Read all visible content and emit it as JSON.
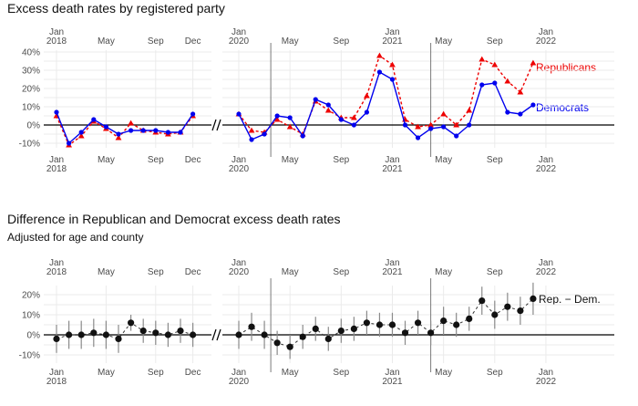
{
  "chart_data": [
    {
      "type": "line",
      "title": "Excess death rates by registered party",
      "yticks": [
        -10,
        0,
        10,
        20,
        30,
        40
      ],
      "ytick_labels": [
        "-10%",
        "0%",
        "10%",
        "20%",
        "30%",
        "40%"
      ],
      "ylim": [
        -13,
        41
      ],
      "segments": [
        {
          "x": [
            "2018-01",
            "2018-02",
            "2018-03",
            "2018-04",
            "2018-05",
            "2018-06",
            "2018-07",
            "2018-08",
            "2018-09",
            "2018-10",
            "2018-11",
            "2018-12"
          ],
          "top_ticks": [
            {
              "label": "Jan\n2018",
              "m": 0
            },
            {
              "label": "May",
              "m": 4
            },
            {
              "label": "Sep",
              "m": 8
            },
            {
              "label": "Dec",
              "m": 11
            }
          ],
          "bottom_ticks": [
            {
              "label": "Jan\n2018",
              "m": 0
            },
            {
              "label": "May",
              "m": 4
            },
            {
              "label": "Sep",
              "m": 8
            },
            {
              "label": "Dec",
              "m": 11
            }
          ]
        },
        {
          "x": [
            "2020-01",
            "2020-02",
            "2020-03",
            "2020-04",
            "2020-05",
            "2020-06",
            "2020-07",
            "2020-08",
            "2020-09",
            "2020-10",
            "2020-11",
            "2020-12",
            "2021-01",
            "2021-02",
            "2021-03",
            "2021-04",
            "2021-05",
            "2021-06",
            "2021-07",
            "2021-08",
            "2021-09",
            "2021-10",
            "2021-11",
            "2021-12"
          ],
          "top_ticks": [
            {
              "label": "Jan\n2020",
              "m": 0
            },
            {
              "label": "May",
              "m": 4
            },
            {
              "label": "Sep",
              "m": 8
            },
            {
              "label": "Jan\n2021",
              "m": 12
            },
            {
              "label": "May",
              "m": 16
            },
            {
              "label": "Sep",
              "m": 20
            },
            {
              "label": "Jan\n2022",
              "m": 24
            }
          ],
          "bottom_ticks": [
            {
              "label": "Jan\n2020",
              "m": 0
            },
            {
              "label": "May",
              "m": 4
            },
            {
              "label": "Sep",
              "m": 8
            },
            {
              "label": "Jan\n2021",
              "m": 12
            },
            {
              "label": "May",
              "m": 16
            },
            {
              "label": "Sep",
              "m": 20
            },
            {
              "label": "Jan\n2022",
              "m": 24
            }
          ],
          "vlines_m": [
            2.5,
            15
          ]
        }
      ],
      "series": [
        {
          "name": "Republicans",
          "color": "#ee0000",
          "style": "dashed",
          "marker": "triangle",
          "values": [
            [
              5,
              -11,
              -6,
              2,
              -2,
              -7,
              1,
              -3,
              -4,
              -5,
              -4,
              5
            ],
            [
              6,
              -3,
              -4,
              3,
              -1,
              -5,
              13,
              8,
              4,
              4,
              16,
              38,
              33,
              3,
              -1,
              0,
              6,
              0,
              8,
              36,
              33,
              24,
              18,
              34
            ]
          ]
        },
        {
          "name": "Democrats",
          "color": "#0000ee",
          "style": "solid",
          "marker": "circle",
          "values": [
            [
              7,
              -10,
              -4,
              3,
              -1,
              -5,
              -3,
              -3,
              -3,
              -4,
              -4,
              6
            ],
            [
              6,
              -8,
              -5,
              5,
              4,
              -6,
              14,
              11,
              3,
              0,
              7,
              29,
              25,
              0,
              -7,
              -2,
              -1,
              -6,
              0,
              22,
              23,
              7,
              6,
              11
            ]
          ]
        }
      ],
      "labels": {
        "Republicans": "Republicans",
        "Democrats": "Democrats"
      }
    },
    {
      "type": "scatter",
      "title": "Difference in Republican and Democrat excess death rates",
      "subtitle": "Adjusted for age and county",
      "yticks": [
        -10,
        0,
        10,
        20
      ],
      "ytick_labels": [
        "-10%",
        "0%",
        "10%",
        "20%"
      ],
      "ylim": [
        -13,
        27
      ],
      "series": [
        {
          "name": "Rep. − Dem.",
          "values": [
            [
              -2,
              0,
              0,
              1,
              0,
              -2,
              6,
              2,
              1,
              0,
              2,
              0
            ],
            [
              0,
              4,
              0,
              -4,
              -6,
              -1,
              3,
              -2,
              2,
              3,
              6,
              5,
              5,
              1,
              6,
              1,
              7,
              5,
              8,
              17,
              10,
              14,
              12,
              18
            ]
          ],
          "error_halfwidth": [
            [
              7,
              7,
              7,
              7,
              7,
              7,
              4,
              6,
              6,
              6,
              6,
              6
            ],
            [
              7,
              7,
              7,
              6,
              6,
              6,
              6,
              6,
              6,
              6,
              6,
              6,
              6,
              6,
              6,
              6,
              7,
              6,
              6,
              7,
              7,
              7,
              7,
              8
            ]
          ]
        }
      ],
      "labels": {
        "diff": "Rep. − Dem."
      }
    }
  ]
}
